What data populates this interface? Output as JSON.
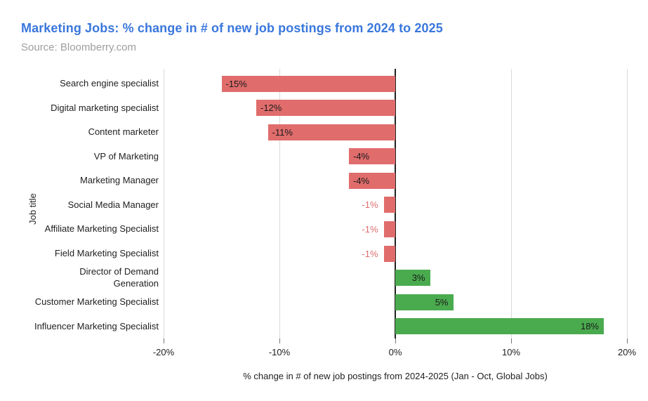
{
  "header": {
    "title": "Marketing Jobs: % change in # of new job postings from 2024 to 2025",
    "subtitle": "Source: Bloomberry.com"
  },
  "chart_data": {
    "type": "bar",
    "orientation": "horizontal",
    "title": "Marketing Jobs: % change in # of new job postings from 2024 to 2025",
    "subtitle": "Source: Bloomberry.com",
    "categories": [
      "Search engine specialist",
      "Digital marketing specialist",
      "Content marketer",
      "VP of Marketing",
      "Marketing Manager",
      "Social Media Manager",
      "Affiliate Marketing Specialist",
      "Field Marketing Specialist",
      "Director of Demand\nGeneration",
      "Customer Marketing Specialist",
      "Influencer Marketing Specialist"
    ],
    "values": [
      -15,
      -12,
      -11,
      -4,
      -4,
      -1,
      -1,
      -1,
      3,
      5,
      18
    ],
    "value_labels": [
      "-15%",
      "-12%",
      "-11%",
      "-4%",
      "-4%",
      "-1%",
      "-1%",
      "-1%",
      "3%",
      "5%",
      "18%"
    ],
    "label_placement": [
      "inside-start",
      "inside-start",
      "inside-start",
      "inside-start",
      "inside-start",
      "outside-start",
      "outside-start",
      "outside-start",
      "inside-end",
      "inside-end",
      "inside-end"
    ],
    "xlabel": "% change in # of new job postings from 2024-2025 (Jan - Oct, Global Jobs)",
    "ylabel": "Job title",
    "x_ticks": [
      "-20%",
      "-10%",
      "0%",
      "10%",
      "20%"
    ],
    "x_tick_values": [
      -20,
      -10,
      0,
      10,
      20
    ],
    "xlim": [
      -20,
      20
    ],
    "grid": "vertical-only",
    "legend": "none",
    "colors": {
      "negative_bar": "#e06c6c",
      "positive_bar": "#4aab4e",
      "label_inside": "#1a1a1a",
      "label_outside_negative": "#e06c6c",
      "gridline": "#dadada",
      "zero_line": "#212121",
      "title": "#3a77dc",
      "subtitle": "#9e9e9e",
      "axis_text": "#212121"
    }
  }
}
